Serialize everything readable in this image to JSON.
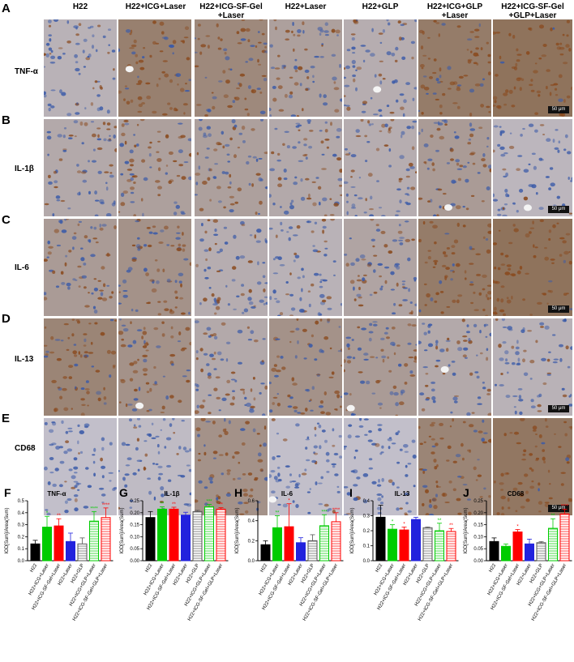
{
  "columns": [
    "H22",
    "H22+ICG+Laser",
    "H22+ICG-SF-Gel\n+Laser",
    "H22+Laser",
    "H22+GLP",
    "H22+ICG+GLP\n+Laser",
    "H22+ICG-SF-Gel\n+GLP+Laser"
  ],
  "rows": [
    {
      "panel": "A",
      "marker": "TNF-α",
      "stain": [
        0.25,
        0.8,
        0.7,
        0.45,
        0.3,
        0.85,
        0.95
      ]
    },
    {
      "panel": "B",
      "marker": "IL-1β",
      "stain": [
        0.35,
        0.45,
        0.45,
        0.35,
        0.3,
        0.5,
        0.2
      ]
    },
    {
      "panel": "C",
      "marker": "IL-6",
      "stain": [
        0.5,
        0.6,
        0.3,
        0.25,
        0.4,
        0.85,
        0.95
      ]
    },
    {
      "panel": "D",
      "marker": "IL-13",
      "stain": [
        0.75,
        0.6,
        0.35,
        0.6,
        0.5,
        0.35,
        0.25
      ]
    },
    {
      "panel": "E",
      "marker": "CD68",
      "stain": [
        0.1,
        0.15,
        0.6,
        0.1,
        0.1,
        0.75,
        0.9
      ]
    }
  ],
  "scale_bar": "50 μm",
  "colors": {
    "bar1": "#000000",
    "bar2": "#00cc00",
    "bar3": "#ff0000",
    "bar4": "#2222dd",
    "bar5": "#555555",
    "bar6": "#00cc00",
    "bar7": "#ff0000",
    "brown": "#8a4a1e",
    "blue": "#3a5aa8"
  },
  "chart_data": [
    {
      "panel": "F",
      "type": "bar",
      "title": "TNF-α",
      "ylabel": "IOD[Sum]/Area(Sum)",
      "ylim": [
        0,
        0.5
      ],
      "ticks": [
        "0.0",
        "0.1",
        "0.2",
        "0.3",
        "0.4",
        "0.5"
      ],
      "categories": [
        "H22",
        "H22+ICG+Laser",
        "H22+ICG-SF-Gel+Laser",
        "H22+Laser",
        "H22+GLP",
        "H22+ICG+GLP+Laser",
        "H22+ICG-SF-Gel+GLP+Laser"
      ],
      "values": [
        0.14,
        0.28,
        0.29,
        0.16,
        0.14,
        0.33,
        0.36
      ],
      "errors": [
        0.03,
        0.09,
        0.06,
        0.07,
        0.05,
        0.08,
        0.08
      ],
      "sig": [
        "",
        "*",
        "**",
        "",
        "",
        "****",
        "****"
      ]
    },
    {
      "panel": "G",
      "type": "bar",
      "title": "IL-1β",
      "ylabel": "IOD[Sum]/Area(Sum)",
      "ylim": [
        0,
        0.25
      ],
      "ticks": [
        "0.00",
        "0.05",
        "0.10",
        "0.15",
        "0.20",
        "0.25"
      ],
      "categories": [
        "H22",
        "H22+ICG+Laser",
        "H22+ICG-SF-Gel+Laser",
        "H22+Laser",
        "H22+GLP",
        "H22+ICG+GLP+Laser",
        "H22+ICG-SF-Gel+GLP+Laser"
      ],
      "values": [
        0.18,
        0.215,
        0.215,
        0.19,
        0.205,
        0.225,
        0.215
      ],
      "errors": [
        0.025,
        0.01,
        0.008,
        0.012,
        0.005,
        0.01,
        0.006
      ],
      "sig": [
        "",
        "**",
        "**",
        "",
        "",
        "***",
        "**"
      ]
    },
    {
      "panel": "H",
      "type": "bar",
      "title": "IL-6",
      "ylabel": "IOD[Sum]/Area(Sum)",
      "ylim": [
        0,
        0.6
      ],
      "ticks": [
        "0.0",
        "0.2",
        "0.4",
        "0.6"
      ],
      "categories": [
        "H22",
        "H22+ICG+Laser",
        "H22+ICG-SF-Gel+Laser",
        "H22+Laser",
        "H22+GLP",
        "H22+ICG+GLP+Laser",
        "H22+ICG-SF-Gel+GLP+Laser"
      ],
      "values": [
        0.16,
        0.33,
        0.34,
        0.18,
        0.2,
        0.35,
        0.39
      ],
      "errors": [
        0.04,
        0.12,
        0.23,
        0.05,
        0.06,
        0.11,
        0.09
      ],
      "sig": [
        "",
        "**",
        "*",
        "",
        "",
        "***",
        "****"
      ]
    },
    {
      "panel": "I",
      "type": "bar",
      "title": "IL-13",
      "ylabel": "IOD[Sum]/Area(Sum)",
      "ylim": [
        0,
        0.4
      ],
      "ticks": [
        "0.0",
        "0.1",
        "0.2",
        "0.3",
        "0.4"
      ],
      "categories": [
        "H22",
        "H22+ICG+Laser",
        "H22+ICG-SF-Gel+Laser",
        "H22+Laser",
        "H22+GLP",
        "H22+ICG+GLP+Laser",
        "H22+ICG-SF-Gel+GLP+Laser"
      ],
      "values": [
        0.29,
        0.21,
        0.205,
        0.275,
        0.22,
        0.2,
        0.195
      ],
      "errors": [
        0.08,
        0.03,
        0.02,
        0.015,
        0.005,
        0.05,
        0.02
      ],
      "sig": [
        "",
        "*",
        "*",
        "",
        "",
        "**",
        "**"
      ]
    },
    {
      "panel": "J",
      "type": "bar",
      "title": "CD68",
      "ylabel": "IOD[Sum]/Area(Sum)",
      "ylim": [
        0,
        0.25
      ],
      "ticks": [
        "0.00",
        "0.05",
        "0.10",
        "0.15",
        "0.20",
        "0.25"
      ],
      "categories": [
        "H22",
        "H22+ICG+Laser",
        "H22+ICG-SF-Gel+Laser",
        "H22+Laser",
        "H22+GLP",
        "H22+ICG+GLP+Laser",
        "H22+ICG-SF-Gel+GLP+Laser"
      ],
      "values": [
        0.08,
        0.06,
        0.12,
        0.07,
        0.075,
        0.135,
        0.195
      ],
      "errors": [
        0.015,
        0.01,
        0.01,
        0.02,
        0.005,
        0.04,
        0.02
      ],
      "sig": [
        "",
        "",
        "*",
        "",
        "",
        "**",
        "****"
      ]
    }
  ]
}
